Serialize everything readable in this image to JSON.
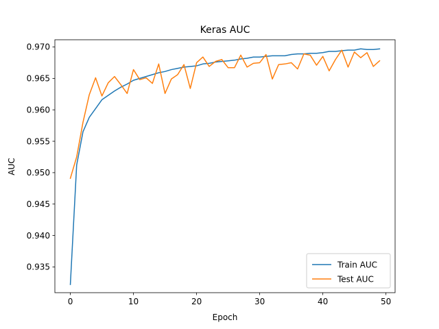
{
  "chart_data": {
    "type": "line",
    "title": "Keras AUC",
    "xlabel": "Epoch",
    "ylabel": "AUC",
    "xlim": [
      -2.45,
      51.45
    ],
    "ylim": [
      0.9309,
      0.97115
    ],
    "xticks": [
      0,
      10,
      20,
      30,
      40,
      50
    ],
    "xtick_labels": [
      "0",
      "10",
      "20",
      "30",
      "40",
      "50"
    ],
    "yticks": [
      0.935,
      0.94,
      0.945,
      0.95,
      0.955,
      0.96,
      0.965,
      0.97
    ],
    "ytick_labels": [
      "0.935",
      "0.940",
      "0.945",
      "0.950",
      "0.955",
      "0.960",
      "0.965",
      "0.970"
    ],
    "grid": false,
    "legend_position": "lower-right",
    "x": [
      0,
      1,
      2,
      3,
      4,
      5,
      6,
      7,
      8,
      9,
      10,
      11,
      12,
      13,
      14,
      15,
      16,
      17,
      18,
      19,
      20,
      21,
      22,
      23,
      24,
      25,
      26,
      27,
      28,
      29,
      30,
      31,
      32,
      33,
      34,
      35,
      36,
      37,
      38,
      39,
      40,
      41,
      42,
      43,
      44,
      45,
      46,
      47,
      48,
      49
    ],
    "series": [
      {
        "name": "Train AUC",
        "color": "#1f77b4",
        "values": [
          0.9322,
          0.9512,
          0.9565,
          0.9588,
          0.9602,
          0.9616,
          0.9623,
          0.963,
          0.9636,
          0.9641,
          0.9647,
          0.965,
          0.9653,
          0.9656,
          0.9659,
          0.9661,
          0.9664,
          0.9666,
          0.9668,
          0.9669,
          0.967,
          0.9673,
          0.9674,
          0.9676,
          0.9677,
          0.9678,
          0.9679,
          0.9681,
          0.9682,
          0.9684,
          0.9684,
          0.9685,
          0.9686,
          0.9686,
          0.9686,
          0.9688,
          0.9689,
          0.9689,
          0.969,
          0.969,
          0.9691,
          0.9693,
          0.9693,
          0.9694,
          0.9695,
          0.9695,
          0.9697,
          0.9696,
          0.9696,
          0.9697
        ]
      },
      {
        "name": "Test AUC",
        "color": "#ff7f0e",
        "values": [
          0.9491,
          0.9525,
          0.958,
          0.9624,
          0.9651,
          0.9622,
          0.9643,
          0.9653,
          0.964,
          0.9626,
          0.9664,
          0.9648,
          0.9651,
          0.9642,
          0.9673,
          0.9626,
          0.9649,
          0.9656,
          0.9672,
          0.9634,
          0.9675,
          0.9684,
          0.9669,
          0.9677,
          0.968,
          0.9667,
          0.9667,
          0.9687,
          0.9668,
          0.9674,
          0.9675,
          0.9688,
          0.9649,
          0.9672,
          0.9673,
          0.9675,
          0.9665,
          0.9689,
          0.9687,
          0.9671,
          0.9685,
          0.9662,
          0.968,
          0.9695,
          0.9668,
          0.9692,
          0.9683,
          0.9691,
          0.9669,
          0.9678
        ]
      }
    ]
  }
}
